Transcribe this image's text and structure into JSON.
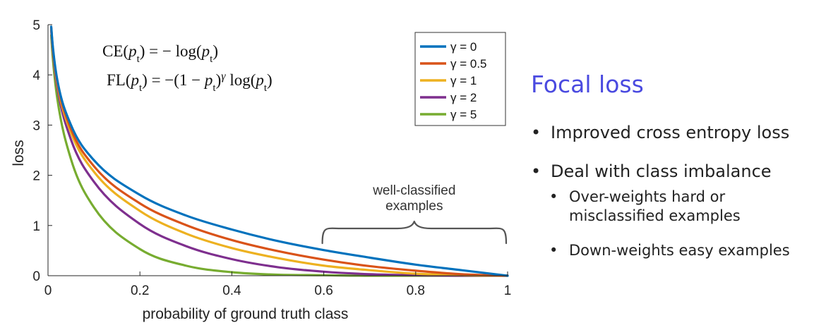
{
  "chart_data": {
    "type": "line",
    "title": "",
    "xlabel": "probability of ground truth class",
    "ylabel": "loss",
    "xlim": [
      0,
      1
    ],
    "ylim": [
      0,
      5
    ],
    "xticks": [
      "0",
      "0.2",
      "0.4",
      "0.6",
      "0.8",
      "1"
    ],
    "yticks": [
      "0",
      "1",
      "2",
      "3",
      "4",
      "5"
    ],
    "grid": false,
    "legend_position": "top-right",
    "x": [
      0.007,
      0.01,
      0.02,
      0.05,
      0.1,
      0.2,
      0.3,
      0.4,
      0.5,
      0.6,
      0.7,
      0.8,
      0.9,
      1.0
    ],
    "series": [
      {
        "name": "γ = 0",
        "color": "#0072BD",
        "values": [
          4.96,
          4.61,
          3.91,
          3.0,
          2.3,
          1.61,
          1.2,
          0.92,
          0.69,
          0.51,
          0.36,
          0.22,
          0.11,
          0.0
        ]
      },
      {
        "name": "γ = 0.5",
        "color": "#D95319",
        "values": [
          4.94,
          4.58,
          3.87,
          2.92,
          2.18,
          1.44,
          1.01,
          0.71,
          0.49,
          0.32,
          0.19,
          0.1,
          0.03,
          0.0
        ]
      },
      {
        "name": "γ = 1",
        "color": "#EDB120",
        "values": [
          4.93,
          4.56,
          3.83,
          2.85,
          2.07,
          1.29,
          0.84,
          0.55,
          0.35,
          0.2,
          0.11,
          0.04,
          0.01,
          0.0
        ]
      },
      {
        "name": "γ = 2",
        "color": "#7E2F8E",
        "values": [
          4.89,
          4.52,
          3.76,
          2.71,
          1.87,
          1.03,
          0.59,
          0.33,
          0.17,
          0.08,
          0.03,
          0.01,
          0.0,
          0.0
        ]
      },
      {
        "name": "γ = 5",
        "color": "#77AC30",
        "values": [
          4.79,
          4.38,
          3.54,
          2.32,
          1.36,
          0.53,
          0.2,
          0.07,
          0.02,
          0.01,
          0.0,
          0.0,
          0.0,
          0.0
        ]
      }
    ],
    "annotation": {
      "text_line1": "well-classified",
      "text_line2": "examples",
      "x_range": [
        0.6,
        1.0
      ]
    },
    "formulas": {
      "ce": "CE(pt) = − log(pt)",
      "fl": "FL(pt) = −(1 − pt)γ log(pt)"
    }
  },
  "side": {
    "title": "Focal loss",
    "title_color": "#4a4ae0",
    "bullets": [
      {
        "level": 1,
        "lines": [
          "Improved cross entropy loss"
        ]
      },
      {
        "level": 1,
        "lines": [
          "Deal with class imbalance"
        ]
      },
      {
        "level": 2,
        "lines": [
          "Over-weights hard or",
          "misclassified examples"
        ]
      },
      {
        "level": 2,
        "lines": [
          "Down-weights easy examples"
        ]
      }
    ]
  }
}
